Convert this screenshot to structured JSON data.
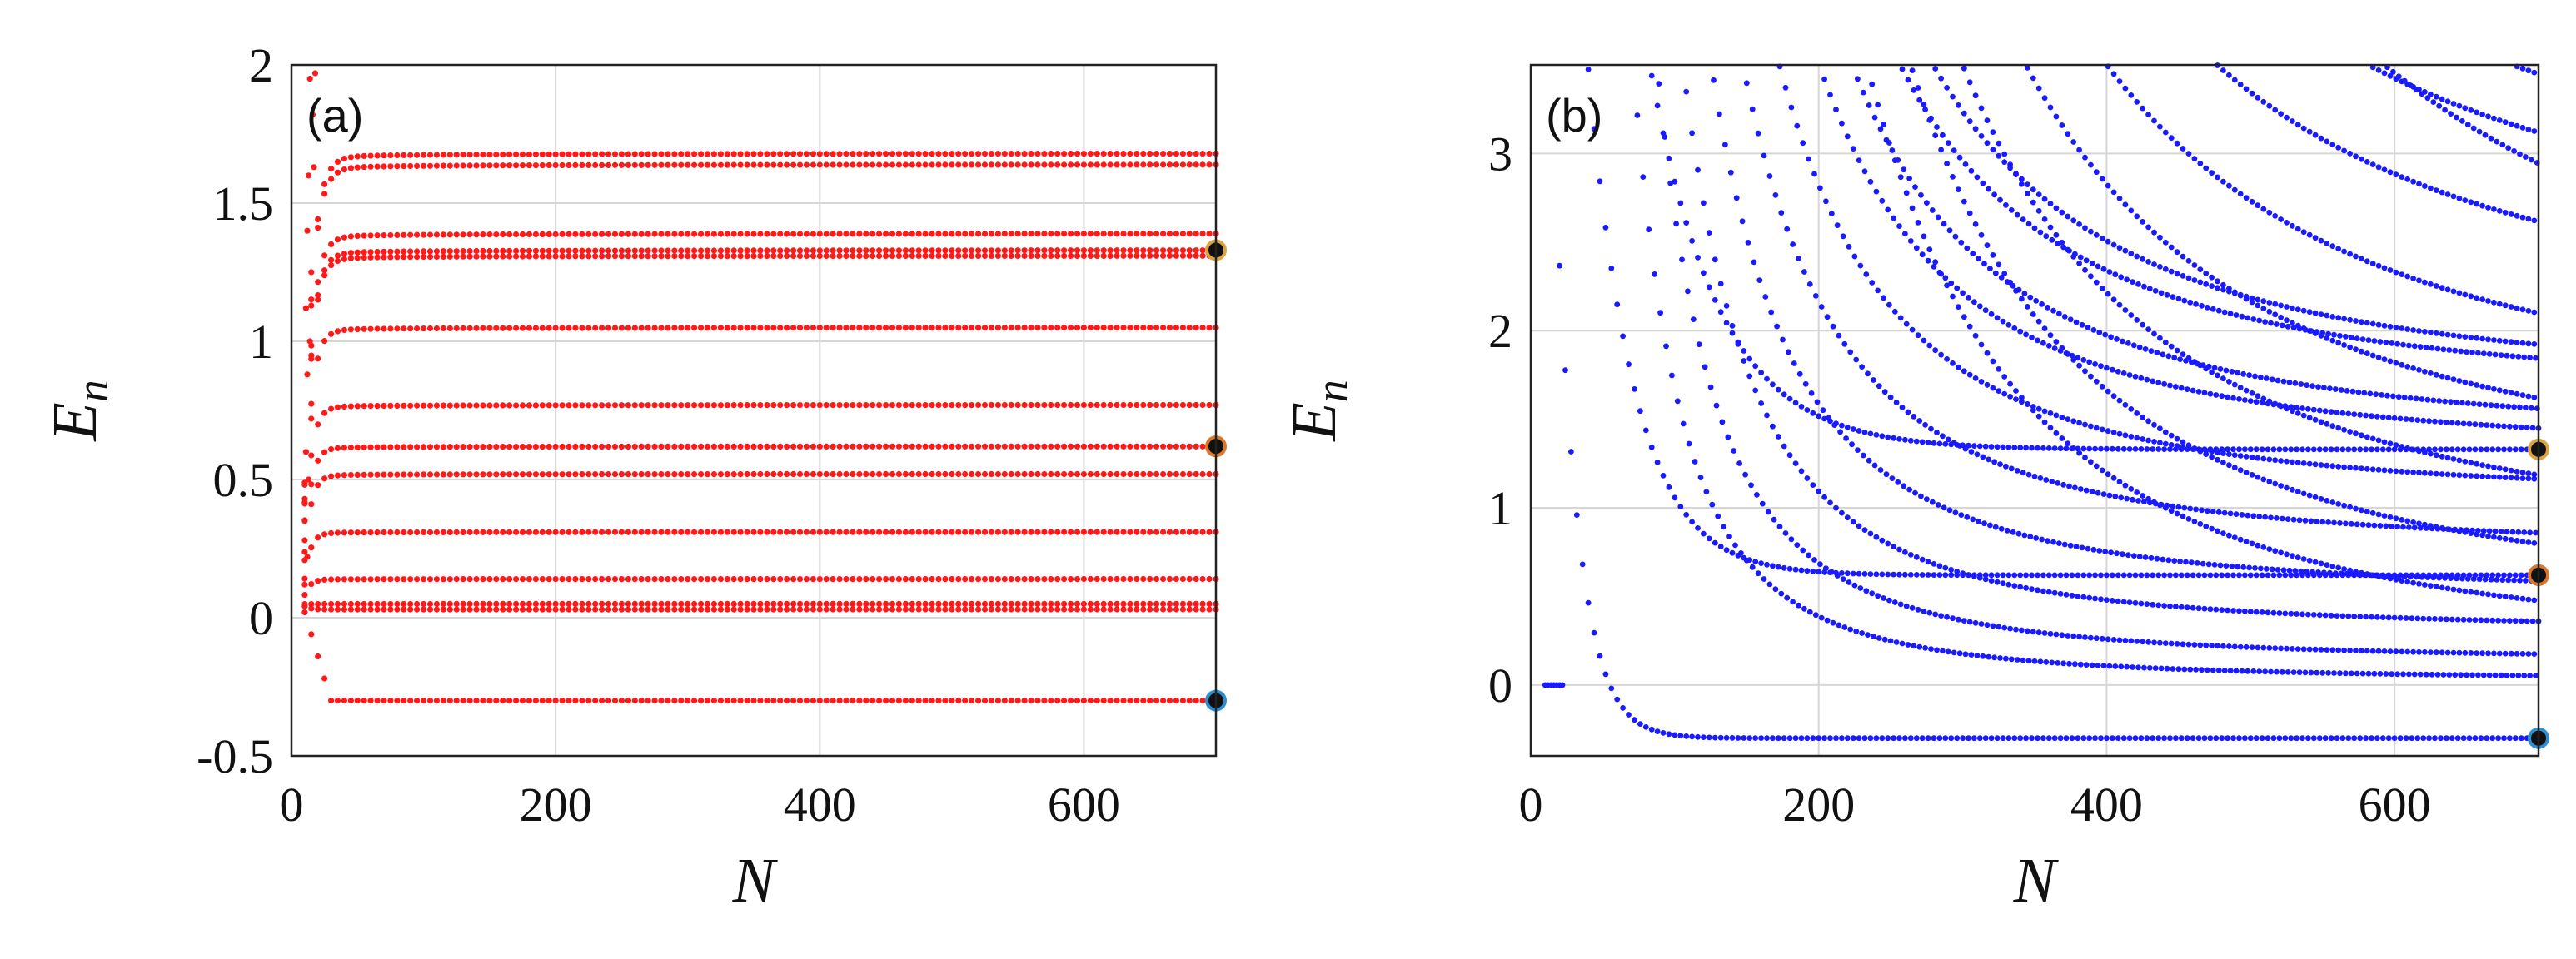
{
  "chart_data": [
    {
      "type": "scatter",
      "panel_label": "(a)",
      "xlabel": "N",
      "ylabel": "E_n",
      "ylabel_main": "E",
      "ylabel_sub": "n",
      "xlim": [
        0,
        700
      ],
      "ylim": [
        -0.5,
        2
      ],
      "xticks": [
        0,
        200,
        400,
        600
      ],
      "xtick_labels": [
        "0",
        "200",
        "400",
        "600"
      ],
      "yticks": [
        -0.5,
        0,
        0.5,
        1,
        1.5,
        2
      ],
      "ytick_labels": [
        "-0.5",
        "0",
        "0.5",
        "1",
        "1.5",
        "2"
      ],
      "grid": true,
      "color": "#ff1a1a",
      "levels": [
        -0.3,
        0.03,
        0.05,
        0.14,
        0.31,
        0.52,
        0.62,
        0.77,
        1.05,
        1.31,
        1.33,
        1.39,
        1.64,
        1.68
      ],
      "markers": [
        {
          "x": 700,
          "y": 1.33,
          "color": "#111111",
          "edge": "#d9a441"
        },
        {
          "x": 700,
          "y": 0.62,
          "color": "#111111",
          "edge": "#d9772e"
        },
        {
          "x": 700,
          "y": -0.3,
          "color": "#111111",
          "edge": "#2d8fd0"
        }
      ]
    },
    {
      "type": "scatter",
      "panel_label": "(b)",
      "xlabel": "N",
      "ylabel": "E_n",
      "ylabel_main": "E",
      "ylabel_sub": "n",
      "xlim": [
        0,
        700
      ],
      "ylim": [
        -0.4,
        3.5
      ],
      "xticks": [
        0,
        200,
        400,
        600
      ],
      "xtick_labels": [
        "0",
        "200",
        "400",
        "600"
      ],
      "yticks": [
        0,
        1,
        2,
        3
      ],
      "ytick_labels": [
        "0",
        "1",
        "2",
        "3"
      ],
      "grid": true,
      "color": "#1a1aff",
      "bound_levels": [
        {
          "level": -0.3,
          "x_enter": 50
        },
        {
          "level": 0.62,
          "x_enter": 100
        },
        {
          "level": 1.33,
          "x_enter": 150
        }
      ],
      "descending_end_values": [
        0.03,
        0.14,
        0.31,
        0.52,
        0.77,
        1.05,
        1.31,
        1.39,
        1.64,
        1.68
      ],
      "descending_start_x": [
        70,
        85,
        100,
        115,
        130,
        145,
        160,
        175,
        190,
        205,
        225,
        245,
        265,
        285,
        305,
        325,
        345,
        365,
        385,
        410,
        435
      ],
      "markers": [
        {
          "x": 700,
          "y": 1.33,
          "color": "#111111",
          "edge": "#d9a441"
        },
        {
          "x": 700,
          "y": 0.62,
          "color": "#111111",
          "edge": "#d9772e"
        },
        {
          "x": 700,
          "y": -0.3,
          "color": "#111111",
          "edge": "#2d8fd0"
        }
      ]
    }
  ]
}
